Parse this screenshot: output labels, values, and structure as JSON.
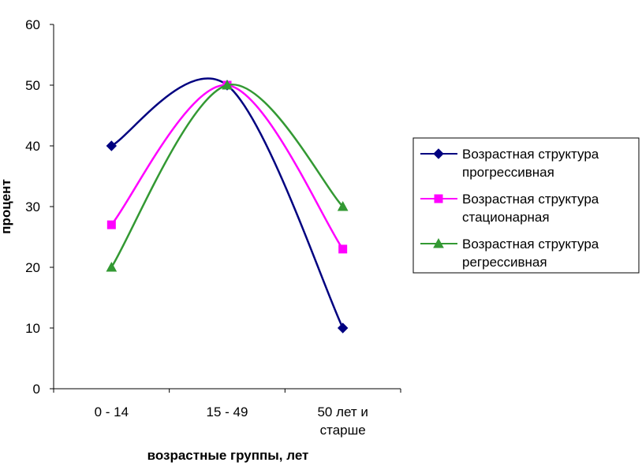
{
  "chart_data": {
    "type": "line",
    "title": "",
    "xlabel": "возрастные группы, лет",
    "ylabel": "процент",
    "categories": [
      [
        "0 - 14"
      ],
      [
        "15 - 49"
      ],
      [
        "50 лет и",
        "старше"
      ]
    ],
    "ylim": [
      0,
      60
    ],
    "yticks": [
      0,
      10,
      20,
      30,
      40,
      50,
      60
    ],
    "grid": false,
    "legend_position": "right",
    "series": [
      {
        "name": [
          "Возрастная структура",
          "прогрессивная"
        ],
        "values": [
          40,
          50,
          10
        ],
        "color": "#000080",
        "marker": "diamond"
      },
      {
        "name": [
          "Возрастная структура",
          "стационарная"
        ],
        "values": [
          27,
          50,
          23
        ],
        "color": "#ff00ff",
        "marker": "square"
      },
      {
        "name": [
          "Возрастная структура",
          "регрессивная"
        ],
        "values": [
          20,
          50,
          30
        ],
        "color": "#339933",
        "marker": "triangle"
      }
    ]
  }
}
